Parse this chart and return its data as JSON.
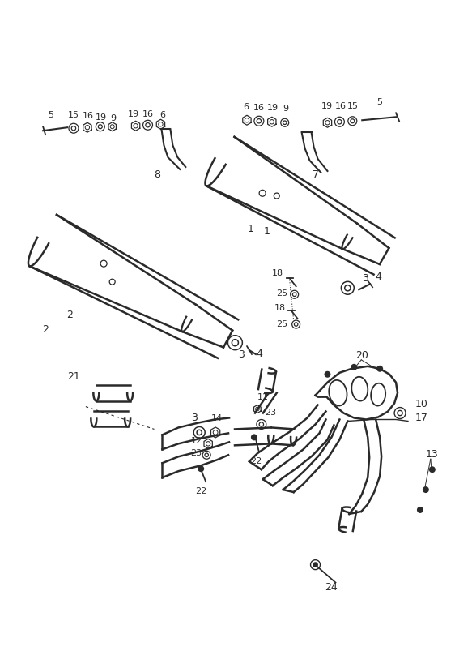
{
  "bg_color": "#ffffff",
  "line_color": "#2a2a2a",
  "fig_width": 5.83,
  "fig_height": 8.24,
  "dpi": 100
}
